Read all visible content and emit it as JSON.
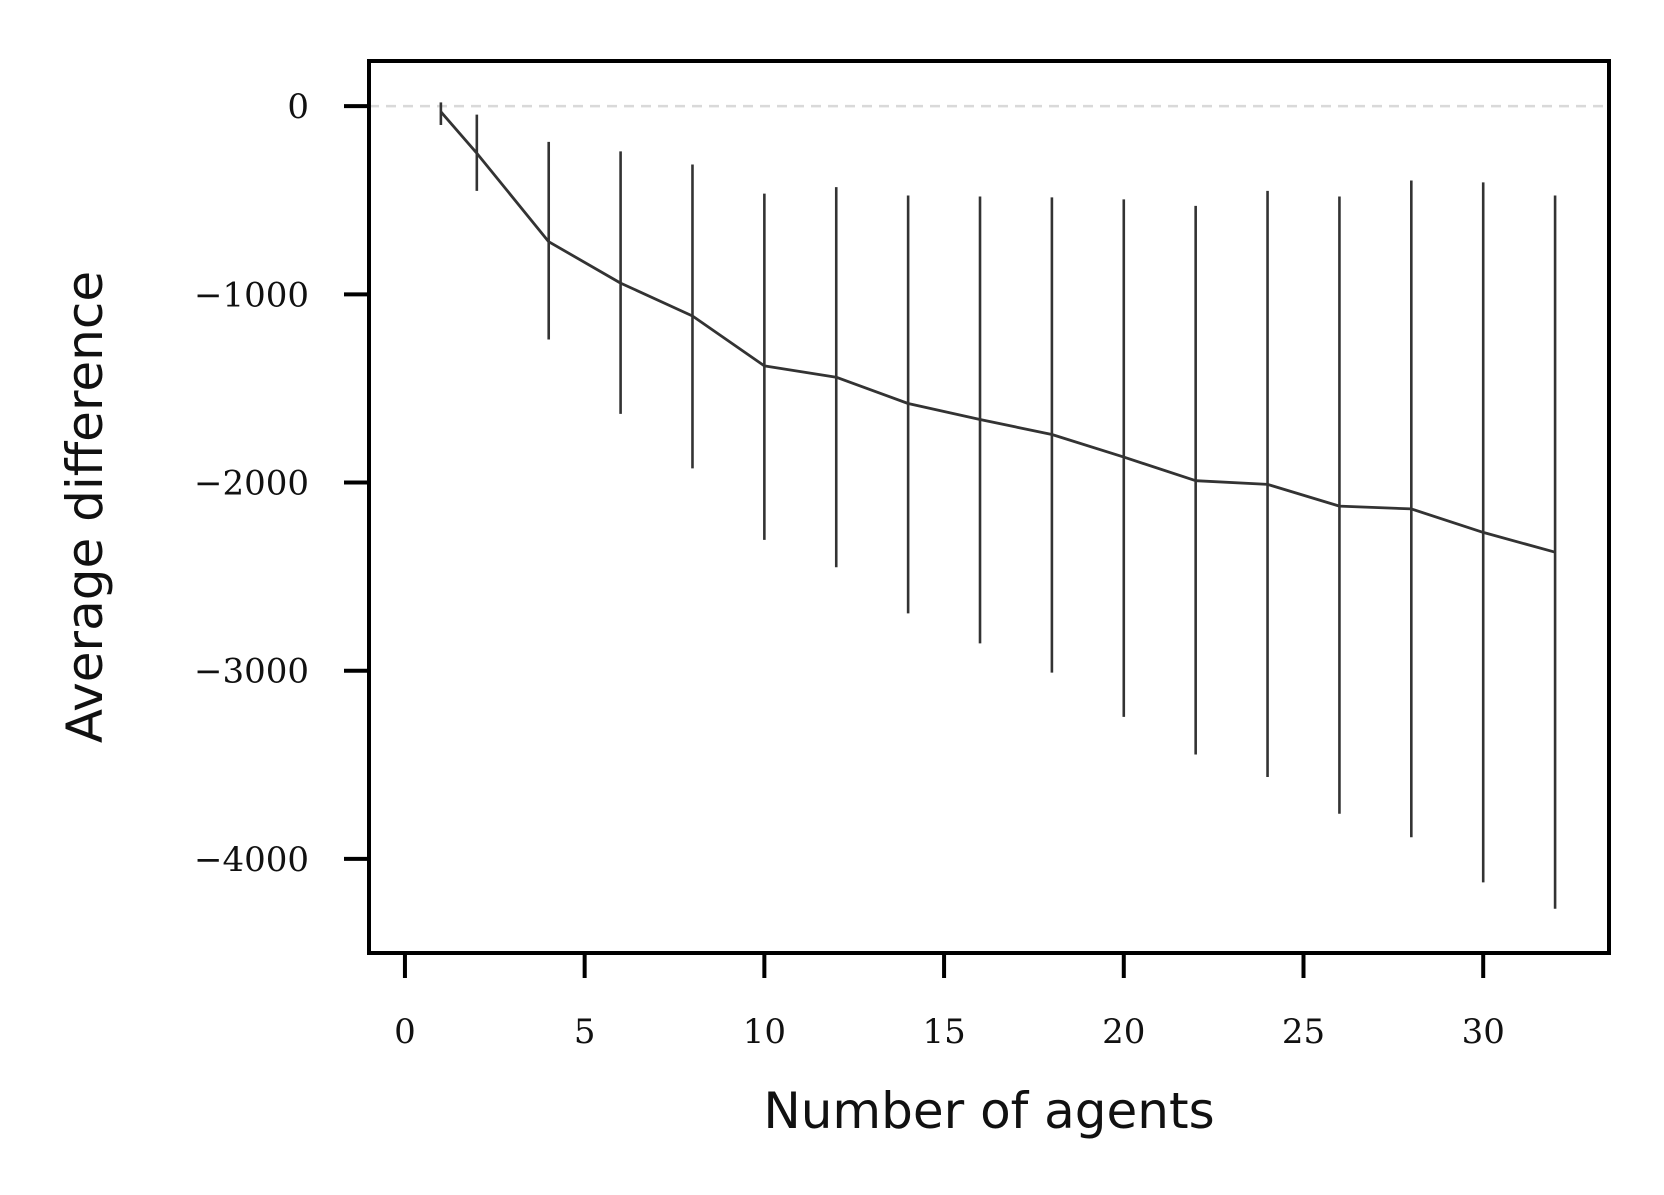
{
  "chart_data": {
    "type": "line",
    "title": "",
    "xlabel": "Number of agents",
    "ylabel": "Average difference",
    "xlim": [
      -1,
      33.5
    ],
    "ylim": [
      -4500,
      240
    ],
    "xticks": [
      0,
      5,
      10,
      15,
      20,
      25,
      30
    ],
    "yticks": [
      0,
      -1000,
      -2000,
      -3000,
      -4000
    ],
    "reference_line": {
      "y": 0,
      "style": "dashed",
      "color": "#d9d9d9"
    },
    "grid": false,
    "legend": "none",
    "line_color": "#333333",
    "series": [
      {
        "x": [
          1,
          2,
          4,
          6,
          8,
          10,
          12,
          14,
          16,
          18,
          20,
          22,
          24,
          26,
          28,
          30,
          32
        ],
        "y": [
          -30,
          -250,
          -720,
          -940,
          -1115,
          -1380,
          -1440,
          -1580,
          -1665,
          -1745,
          -1865,
          -1990,
          -2010,
          -2125,
          -2140,
          -2265,
          -2370
        ],
        "err_low": [
          -100,
          -450,
          -1240,
          -1635,
          -1925,
          -2305,
          -2450,
          -2695,
          -2855,
          -3010,
          -3245,
          -3445,
          -3565,
          -3760,
          -3885,
          -4125,
          -4265
        ],
        "err_high": [
          20,
          -45,
          -190,
          -240,
          -310,
          -465,
          -430,
          -475,
          -480,
          -485,
          -495,
          -530,
          -450,
          -480,
          -395,
          -405,
          -475
        ]
      }
    ]
  }
}
